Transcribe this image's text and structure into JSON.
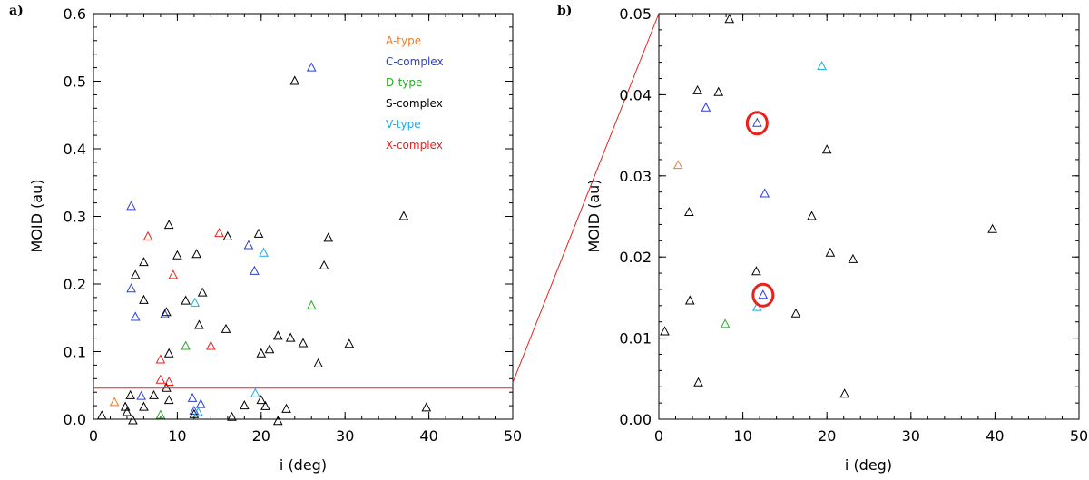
{
  "chart_data": [
    {
      "type": "scatter",
      "panel_label": "a)",
      "xlabel": "i (deg)",
      "ylabel": "MOID (au)",
      "xlim": [
        0,
        50
      ],
      "ylim": [
        0,
        0.6
      ],
      "xticks": [
        0,
        10,
        20,
        30,
        40,
        50
      ],
      "xtick_labels": [
        "0",
        "10",
        "20",
        "30",
        "40",
        "50"
      ],
      "yticks": [
        0,
        0.1,
        0.2,
        0.3,
        0.4,
        0.5,
        0.6
      ],
      "ytick_labels": [
        "0.0",
        "0.1",
        "0.2",
        "0.3",
        "0.4",
        "0.5",
        "0.6"
      ],
      "legend_position": "top-right",
      "threshold_line": {
        "y": 0.046,
        "color": "#e8211c"
      },
      "series": [
        {
          "name": "A-type",
          "color": "#ee7b2e",
          "points": [
            [
              2.5,
              0.025
            ]
          ]
        },
        {
          "name": "C-complex",
          "color": "#2c3fd4",
          "points": [
            [
              26,
              0.52
            ],
            [
              4.5,
              0.315
            ],
            [
              18.5,
              0.257
            ],
            [
              19.2,
              0.219
            ],
            [
              4.5,
              0.193
            ],
            [
              5,
              0.151
            ],
            [
              8.5,
              0.155
            ],
            [
              5.7,
              0.034
            ],
            [
              12.8,
              0.022
            ],
            [
              11.8,
              0.031
            ],
            [
              12,
              0.012
            ]
          ]
        },
        {
          "name": "D-type",
          "color": "#2ea82e",
          "points": [
            [
              26,
              0.168
            ],
            [
              11,
              0.108
            ],
            [
              8,
              0.006
            ]
          ]
        },
        {
          "name": "S-complex",
          "color": "#000000",
          "points": [
            [
              24,
              0.5
            ],
            [
              37,
              0.3
            ],
            [
              9,
              0.287
            ],
            [
              19.7,
              0.274
            ],
            [
              16,
              0.27
            ],
            [
              28,
              0.268
            ],
            [
              12.3,
              0.244
            ],
            [
              10,
              0.242
            ],
            [
              6,
              0.232
            ],
            [
              27.5,
              0.227
            ],
            [
              5,
              0.213
            ],
            [
              13,
              0.187
            ],
            [
              11,
              0.175
            ],
            [
              6,
              0.176
            ],
            [
              8.7,
              0.158
            ],
            [
              12.6,
              0.139
            ],
            [
              15.8,
              0.133
            ],
            [
              22,
              0.123
            ],
            [
              23.5,
              0.12
            ],
            [
              25,
              0.112
            ],
            [
              30.5,
              0.111
            ],
            [
              21,
              0.103
            ],
            [
              20,
              0.097
            ],
            [
              9,
              0.097
            ],
            [
              26.8,
              0.082
            ],
            [
              8.7,
              0.046
            ],
            [
              7.2,
              0.035
            ],
            [
              4.4,
              0.035
            ],
            [
              9,
              0.028
            ],
            [
              3.8,
              0.018
            ],
            [
              6,
              0.018
            ],
            [
              4,
              0.01
            ],
            [
              1,
              0.005
            ],
            [
              4.7,
              -0.002
            ],
            [
              20,
              0.028
            ],
            [
              20.5,
              0.019
            ],
            [
              18,
              0.02
            ],
            [
              23,
              0.015
            ],
            [
              12,
              0.007
            ],
            [
              16.5,
              0.003
            ],
            [
              22,
              -0.003
            ],
            [
              39.7,
              0.017
            ]
          ]
        },
        {
          "name": "V-type",
          "color": "#1fa9e0",
          "points": [
            [
              20.3,
              0.246
            ],
            [
              12.1,
              0.172
            ],
            [
              19.3,
              0.038
            ],
            [
              12.5,
              0.01
            ]
          ]
        },
        {
          "name": "X-complex",
          "color": "#e8211c",
          "points": [
            [
              6.5,
              0.27
            ],
            [
              15,
              0.275
            ],
            [
              9.5,
              0.213
            ],
            [
              14,
              0.108
            ],
            [
              8,
              0.088
            ],
            [
              8,
              0.058
            ],
            [
              9,
              0.055
            ]
          ]
        }
      ]
    },
    {
      "type": "scatter",
      "panel_label": "b)",
      "xlabel": "i (deg)",
      "ylabel": "MOID (au)",
      "xlim": [
        0,
        50
      ],
      "ylim": [
        0,
        0.05
      ],
      "xticks": [
        0,
        10,
        20,
        30,
        40,
        50
      ],
      "xtick_labels": [
        "0",
        "10",
        "20",
        "30",
        "40",
        "50"
      ],
      "yticks": [
        0,
        0.01,
        0.02,
        0.03,
        0.04,
        0.05
      ],
      "ytick_labels": [
        "0.00",
        "0.01",
        "0.02",
        "0.03",
        "0.04",
        "0.05"
      ],
      "highlight_circles": [
        [
          11.7,
          0.0365
        ],
        [
          12.4,
          0.0153
        ]
      ],
      "highlight_color": "#e8211c",
      "series": [
        {
          "name": "A-type",
          "color": "#ee7b2e",
          "points": [
            [
              2.3,
              0.0313
            ]
          ]
        },
        {
          "name": "C-complex",
          "color": "#2c3fd4",
          "points": [
            [
              5.6,
              0.0384
            ],
            [
              11.7,
              0.0365
            ],
            [
              12.6,
              0.0278
            ],
            [
              12.4,
              0.0153
            ]
          ]
        },
        {
          "name": "D-type",
          "color": "#2ea82e",
          "points": [
            [
              7.9,
              0.0117
            ]
          ]
        },
        {
          "name": "S-complex",
          "color": "#000000",
          "points": [
            [
              8.4,
              0.0493
            ],
            [
              4.6,
              0.0405
            ],
            [
              7.1,
              0.0403
            ],
            [
              20,
              0.0332
            ],
            [
              3.6,
              0.0255
            ],
            [
              18.2,
              0.025
            ],
            [
              20.4,
              0.0205
            ],
            [
              23.1,
              0.0197
            ],
            [
              39.7,
              0.0234
            ],
            [
              11.6,
              0.0182
            ],
            [
              3.7,
              0.0146
            ],
            [
              16.3,
              0.013
            ],
            [
              0.7,
              0.0108
            ],
            [
              4.7,
              0.0045
            ],
            [
              22.1,
              0.0031
            ]
          ]
        },
        {
          "name": "V-type",
          "color": "#1fa9e0",
          "points": [
            [
              19.4,
              0.0435
            ],
            [
              11.7,
              0.0138
            ]
          ]
        },
        {
          "name": "X-complex",
          "color": "#e8211c",
          "points": []
        }
      ]
    }
  ]
}
